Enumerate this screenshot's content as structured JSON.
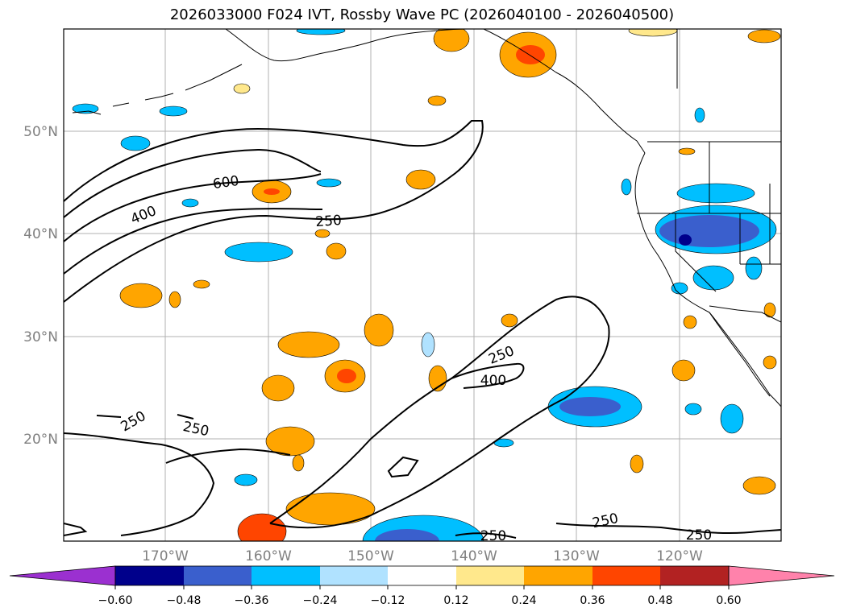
{
  "title": "2026033000 F024 IVT, Rossby Wave PC (2026040100 - 2026040500)",
  "axes": {
    "lat_labels": [
      "50°N",
      "40°N",
      "30°N",
      "20°N"
    ],
    "lon_labels": [
      "170°W",
      "160°W",
      "150°W",
      "140°W",
      "130°W",
      "120°W"
    ]
  },
  "contour_labels": [
    "600",
    "400",
    "250",
    "250",
    "250",
    "250",
    "400",
    "250",
    "250",
    "250"
  ],
  "colorbar": {
    "ticks": [
      "−0.60",
      "−0.48",
      "−0.36",
      "−0.24",
      "−0.12",
      "0.12",
      "0.24",
      "0.36",
      "0.48",
      "0.60"
    ],
    "colors": [
      "#9b30d0",
      "#00008b",
      "#3a5fcd",
      "#00bfff",
      "#b0e2ff",
      "#ffffff",
      "#ffe88c",
      "#ffa500",
      "#ff4500",
      "#b22222",
      "#ff82ab"
    ]
  },
  "palette": {
    "pos1": "#ffe88c",
    "pos2": "#ffa500",
    "pos3": "#ff4500",
    "neg1": "#b0e2ff",
    "neg2": "#00bfff",
    "neg3": "#3a5fcd",
    "neg4": "#00008b"
  }
}
